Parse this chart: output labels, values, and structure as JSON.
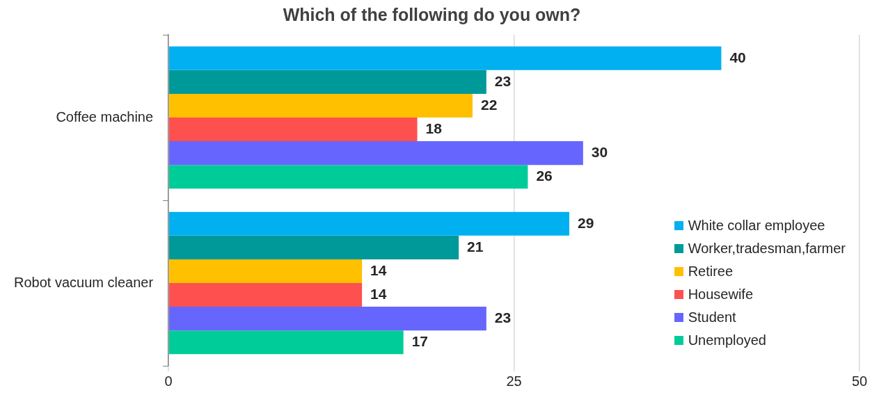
{
  "chart_data": {
    "type": "bar",
    "orientation": "horizontal",
    "title": "Which of the following do you own?",
    "categories": [
      "Coffee machine",
      "Robot vacuum cleaner"
    ],
    "series": [
      {
        "name": "White collar employee",
        "color": "#00b0f0",
        "values": [
          40,
          29
        ]
      },
      {
        "name": "Worker,tradesman,farmer",
        "color": "#009999",
        "values": [
          23,
          21
        ]
      },
      {
        "name": "Retiree",
        "color": "#ffc000",
        "values": [
          22,
          14
        ]
      },
      {
        "name": "Housewife",
        "color": "#ff5050",
        "values": [
          18,
          14
        ]
      },
      {
        "name": "Student",
        "color": "#6666ff",
        "values": [
          30,
          23
        ]
      },
      {
        "name": "Unemployed",
        "color": "#00cc99",
        "values": [
          26,
          17
        ]
      }
    ],
    "xlim": [
      0,
      50
    ],
    "xticks": [
      0,
      25,
      50
    ],
    "grid": "x",
    "legend": "bottom right",
    "data_labels": true
  }
}
